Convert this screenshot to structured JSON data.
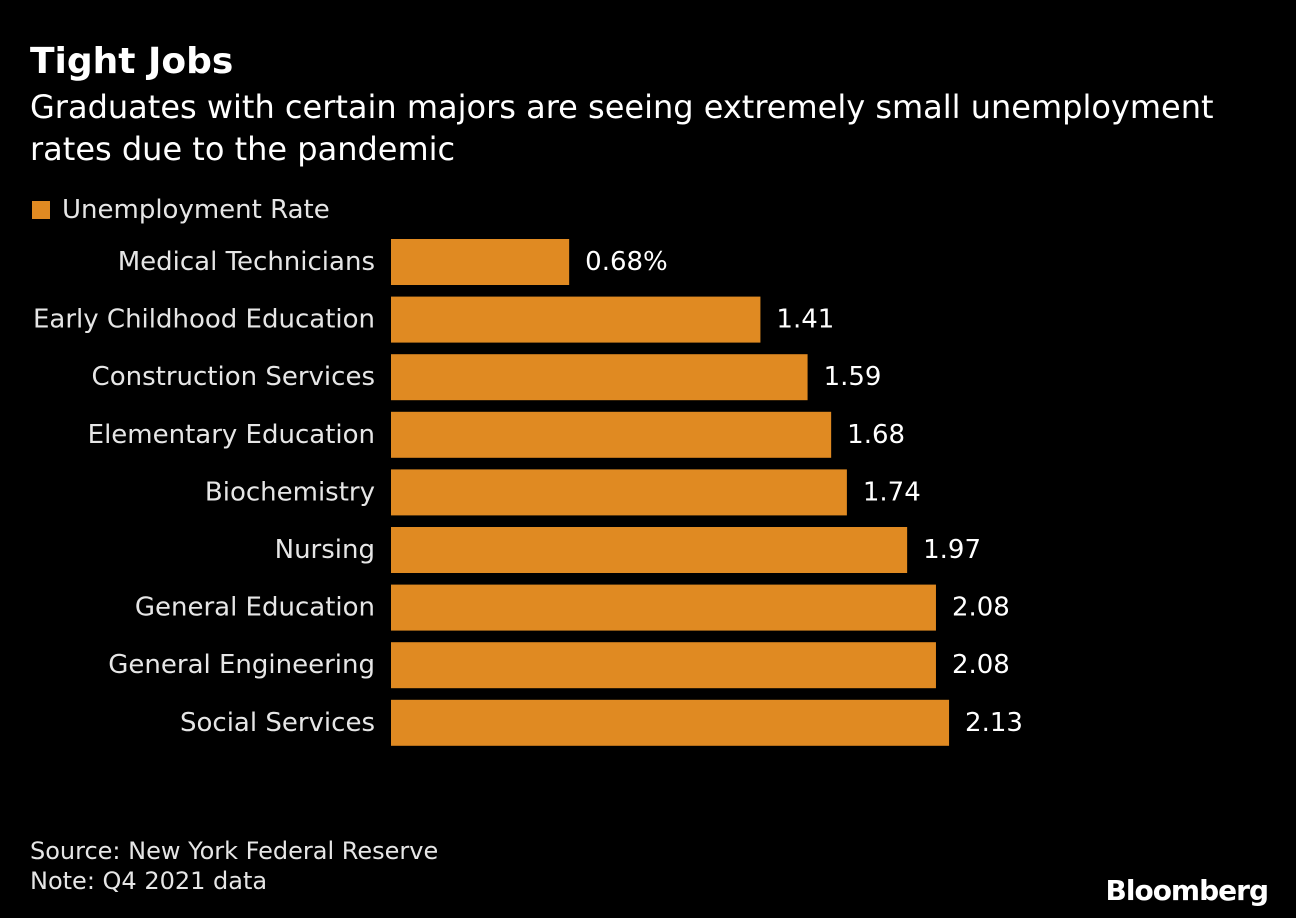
{
  "chart_data": {
    "type": "bar",
    "orientation": "horizontal",
    "title": "Tight Jobs",
    "subtitle": "Graduates with certain majors are seeing extremely small unemployment rates due to the pandemic",
    "legend": {
      "placement": "top-left",
      "entries": [
        "Unemployment Rate"
      ]
    },
    "categories": [
      "Medical Technicians",
      "Early Childhood Education",
      "Construction Services",
      "Elementary Education",
      "Biochemistry",
      "Nursing",
      "General Education",
      "General Engineering",
      "Social Services"
    ],
    "series": [
      {
        "name": "Unemployment Rate",
        "color": "#e08a22",
        "values": [
          0.68,
          1.41,
          1.59,
          1.68,
          1.74,
          1.97,
          2.08,
          2.08,
          2.13
        ],
        "value_labels": [
          "0.68%",
          "1.41",
          "1.59",
          "1.68",
          "1.74",
          "1.97",
          "2.08",
          "2.08",
          "2.13"
        ]
      }
    ],
    "xlim": [
      0,
      2.13
    ],
    "grid": false
  },
  "footer": {
    "source": "Source: New York Federal Reserve",
    "note": "Note: Q4 2021 data",
    "logo": "Bloomberg"
  },
  "colors": {
    "background": "#000000",
    "bar": "#e08a22",
    "text": "#ffffff"
  }
}
